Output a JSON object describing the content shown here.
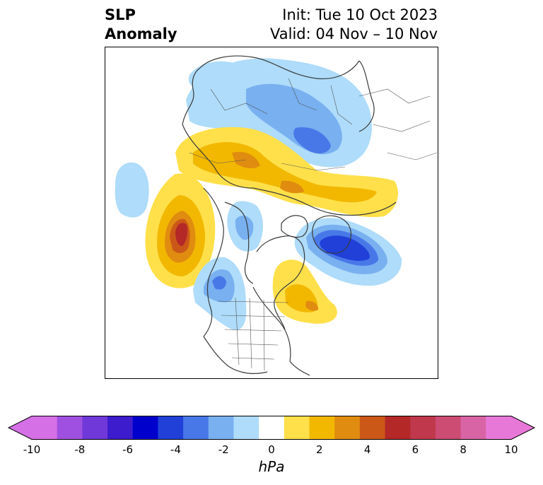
{
  "header": {
    "title_line1": "SLP",
    "title_line2": "Anomaly",
    "init_text": "Init: Tue 10 Oct 2023",
    "valid_text": "Valid: 04 Nov – 10 Nov"
  },
  "colorbar": {
    "units": "hPa",
    "tick_labels": [
      "-10",
      "-8",
      "-6",
      "-4",
      "-2",
      "0",
      "2",
      "4",
      "6",
      "8",
      "10"
    ],
    "levels": [
      -10,
      -9,
      -8,
      -7,
      -6,
      -5,
      -4,
      -3,
      -2,
      -1,
      1,
      2,
      3,
      4,
      5,
      6,
      7,
      8,
      9,
      10
    ],
    "colors": [
      "#d670e6",
      "#a050e0",
      "#7038d8",
      "#3c1ccc",
      "#0000cc",
      "#2040d8",
      "#4878e8",
      "#78b0f0",
      "#aedcfa",
      "#ffffff",
      "#ffe04a",
      "#f2b800",
      "#e08c10",
      "#cc5818",
      "#b42828",
      "#c0384c",
      "#cc4c74",
      "#d864a6",
      "#e878d8"
    ],
    "extend_low_color": "#d670e6",
    "extend_high_color": "#e878d8"
  },
  "map": {
    "projection": "north-polar-stereographic",
    "anomaly_centers": [
      {
        "region": "Gulf of Alaska / NE Pacific",
        "value_hpa": 6.5,
        "sign": "positive"
      },
      {
        "region": "Central Siberia",
        "value_hpa": -5,
        "sign": "negative"
      },
      {
        "region": "Northern Eurasia Arctic coast",
        "value_hpa": 4,
        "sign": "positive"
      },
      {
        "region": "Greenland / North Atlantic",
        "value_hpa": -6,
        "sign": "negative"
      },
      {
        "region": "Eastern Canada",
        "value_hpa": 3,
        "sign": "positive"
      },
      {
        "region": "Western Canada / Pacific NW",
        "value_hpa": -3.5,
        "sign": "negative"
      },
      {
        "region": "Central North Pacific",
        "value_hpa": -2,
        "sign": "negative"
      },
      {
        "region": "Arctic Ocean",
        "value_hpa": -2,
        "sign": "negative"
      }
    ]
  }
}
